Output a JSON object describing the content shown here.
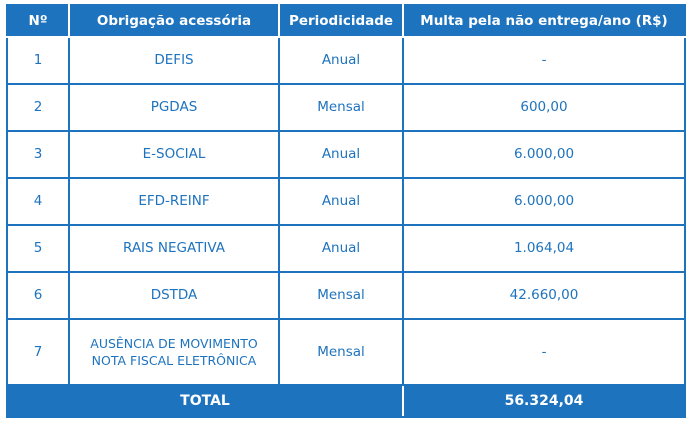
{
  "table": {
    "headers": {
      "num": "Nº",
      "obligation": "Obrigação acessória",
      "periodicity": "Periodicidade",
      "fine": "Multa pela não entrega/ano (R$)"
    },
    "rows": [
      {
        "num": "1",
        "obligation": "DEFIS",
        "periodicity": "Anual",
        "fine": "-"
      },
      {
        "num": "2",
        "obligation": "PGDAS",
        "periodicity": "Mensal",
        "fine": "600,00"
      },
      {
        "num": "3",
        "obligation": "E-SOCIAL",
        "periodicity": "Anual",
        "fine": "6.000,00"
      },
      {
        "num": "4",
        "obligation": "EFD-REINF",
        "periodicity": "Anual",
        "fine": "6.000,00"
      },
      {
        "num": "5",
        "obligation": "RAIS NEGATIVA",
        "periodicity": "Anual",
        "fine": "1.064,04"
      },
      {
        "num": "6",
        "obligation": "DSTDA",
        "periodicity": "Mensal",
        "fine": "42.660,00"
      },
      {
        "num": "7",
        "obligation_line1": "AUSÊNCIA DE MOVIMENTO",
        "obligation_line2": "NOTA FISCAL ELETRÔNICA",
        "periodicity": "Mensal",
        "fine": "-"
      }
    ],
    "total": {
      "label": "TOTAL",
      "value": "56.324,04"
    }
  },
  "colors": {
    "accent": "#1e73be",
    "background": "#ffffff"
  }
}
